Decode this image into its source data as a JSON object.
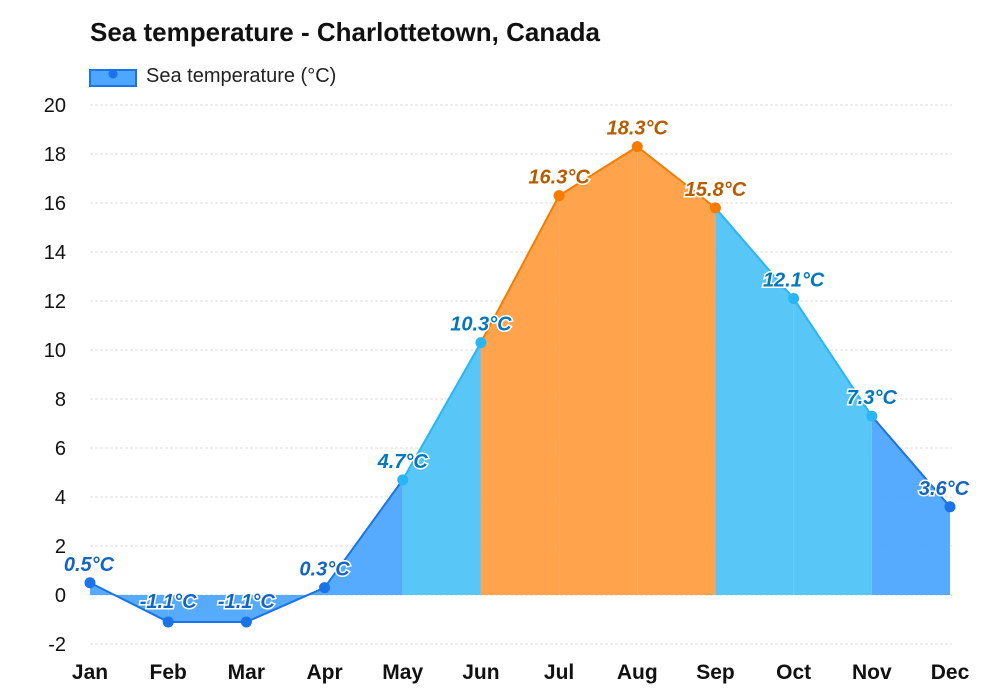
{
  "chart_data": {
    "type": "area",
    "title": "Sea temperature - Charlottetown, Canada",
    "xlabel": "",
    "ylabel": "",
    "categories": [
      "Jan",
      "Feb",
      "Mar",
      "Apr",
      "May",
      "Jun",
      "Jul",
      "Aug",
      "Sep",
      "Oct",
      "Nov",
      "Dec"
    ],
    "series": [
      {
        "name": "Sea temperature (°C)",
        "values": [
          0.5,
          -1.1,
          -1.1,
          0.3,
          4.7,
          10.3,
          16.3,
          18.3,
          15.8,
          12.1,
          7.3,
          3.6
        ],
        "labels": [
          "0.5°C",
          "-1.1°C",
          "-1.1°C",
          "0.3°C",
          "4.7°C",
          "10.3°C",
          "16.3°C",
          "18.3°C",
          "15.8°C",
          "12.1°C",
          "7.3°C",
          "3.6°C"
        ]
      }
    ],
    "ylim": [
      -2,
      20
    ],
    "yticks": [
      -2,
      0,
      2,
      4,
      6,
      8,
      10,
      12,
      14,
      16,
      18,
      20
    ],
    "grid": true,
    "legend_position": "top-left",
    "colors": {
      "cold_fill": "#4da6ff",
      "cold_line": "#1a73e8",
      "cool_fill": "#4fc3f7",
      "cool_line": "#29b6f6",
      "warm_fill": "#ff9f43",
      "warm_line": "#f57c00",
      "cold_label": "#1565c0",
      "cool_label": "#0277bd",
      "warm_label": "#b85c00"
    }
  }
}
